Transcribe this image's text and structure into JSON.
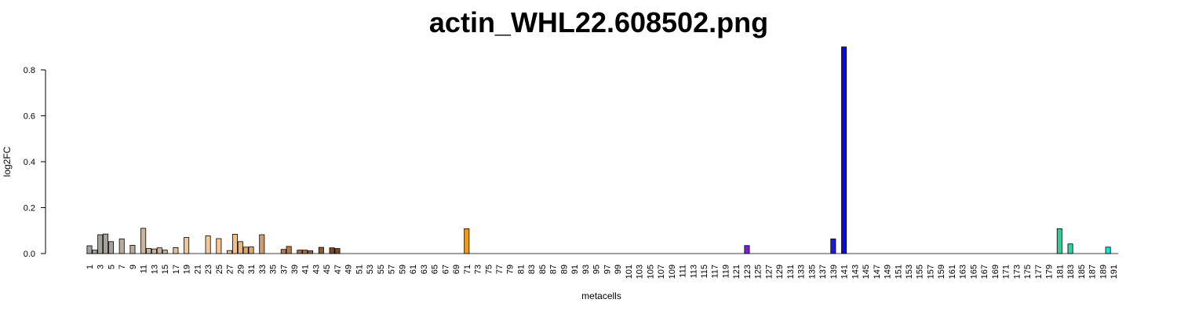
{
  "chart_data": {
    "type": "bar",
    "title": "actin_WHL22.608502.png",
    "xlabel": "metacells",
    "ylabel": "log2FC",
    "ylim": [
      0,
      0.8
    ],
    "yticks": [
      0.0,
      0.2,
      0.4,
      0.6,
      0.8
    ],
    "ytick_labels": [
      "0.0",
      "0.2",
      "0.4",
      "0.6",
      "0.8"
    ],
    "grid": false,
    "categories": [
      "1",
      "2",
      "3",
      "4",
      "5",
      "6",
      "7",
      "8",
      "9",
      "10",
      "11",
      "12",
      "13",
      "14",
      "15",
      "16",
      "17",
      "18",
      "19",
      "20",
      "21",
      "22",
      "23",
      "24",
      "25",
      "26",
      "27",
      "28",
      "29",
      "30",
      "31",
      "32",
      "33",
      "34",
      "35",
      "36",
      "37",
      "38",
      "39",
      "40",
      "41",
      "42",
      "43",
      "44",
      "45",
      "46",
      "47",
      "48",
      "49",
      "50",
      "51",
      "52",
      "53",
      "54",
      "55",
      "56",
      "57",
      "58",
      "59",
      "60",
      "61",
      "62",
      "63",
      "64",
      "65",
      "66",
      "67",
      "68",
      "69",
      "70",
      "71",
      "72",
      "73",
      "74",
      "75",
      "76",
      "77",
      "78",
      "79",
      "80",
      "81",
      "82",
      "83",
      "84",
      "85",
      "86",
      "87",
      "88",
      "89",
      "90",
      "91",
      "92",
      "93",
      "94",
      "95",
      "96",
      "97",
      "98",
      "99",
      "100",
      "101",
      "102",
      "103",
      "104",
      "105",
      "106",
      "107",
      "108",
      "109",
      "110",
      "111",
      "112",
      "113",
      "114",
      "115",
      "116",
      "117",
      "118",
      "119",
      "120",
      "121",
      "122",
      "123",
      "124",
      "125",
      "126",
      "127",
      "128",
      "129",
      "130",
      "131",
      "132",
      "133",
      "134",
      "135",
      "136",
      "137",
      "138",
      "139",
      "140",
      "141",
      "142",
      "143",
      "144",
      "145",
      "146",
      "147",
      "148",
      "149",
      "150",
      "151",
      "152",
      "153",
      "154",
      "155",
      "156",
      "157",
      "158",
      "159",
      "160",
      "161",
      "162",
      "163",
      "164",
      "165",
      "166",
      "167",
      "168",
      "169",
      "170",
      "171",
      "172",
      "173",
      "174",
      "175",
      "176",
      "177",
      "178",
      "179",
      "180",
      "181",
      "182",
      "183",
      "184",
      "185",
      "186",
      "187",
      "188",
      "189",
      "190",
      "191"
    ],
    "tick_labels_shown": [
      "1",
      "3",
      "5",
      "7",
      "9",
      "11",
      "13",
      "15",
      "17",
      "19",
      "21",
      "23",
      "25",
      "27",
      "29",
      "31",
      "33",
      "35",
      "37",
      "39",
      "41",
      "43",
      "45",
      "47",
      "49",
      "51",
      "53",
      "55",
      "57",
      "59",
      "61",
      "63",
      "65",
      "67",
      "69",
      "71",
      "73",
      "75",
      "77",
      "79",
      "81",
      "83",
      "85",
      "87",
      "89",
      "91",
      "93",
      "95",
      "97",
      "99",
      "101",
      "103",
      "105",
      "107",
      "109",
      "111",
      "113",
      "115",
      "117",
      "119",
      "121",
      "123",
      "125",
      "127",
      "129",
      "131",
      "133",
      "135",
      "137",
      "139",
      "141",
      "143",
      "145",
      "147",
      "149",
      "151",
      "153",
      "155",
      "157",
      "159",
      "161",
      "163",
      "165",
      "167",
      "169",
      "171",
      "173",
      "175",
      "177",
      "179",
      "181",
      "183",
      "185",
      "187",
      "189",
      "191"
    ],
    "values": [
      0.034,
      0.015,
      0.082,
      0.085,
      0.052,
      0,
      0.064,
      0,
      0.036,
      0,
      0.11,
      0.022,
      0.02,
      0.025,
      0.015,
      0,
      0.026,
      0,
      0.07,
      0,
      0,
      0,
      0.077,
      0,
      0.065,
      0,
      0.013,
      0.084,
      0.052,
      0.028,
      0.029,
      0,
      0.082,
      0,
      0,
      0,
      0.018,
      0.031,
      0,
      0.015,
      0.015,
      0.012,
      0,
      0.027,
      0,
      0.025,
      0.022,
      0,
      0,
      0,
      0,
      0,
      0,
      0,
      0,
      0,
      0,
      0,
      0,
      0,
      0,
      0,
      0,
      0,
      0,
      0,
      0,
      0,
      0,
      0,
      0.108,
      0,
      0,
      0,
      0,
      0,
      0,
      0,
      0,
      0,
      0,
      0,
      0,
      0,
      0,
      0,
      0,
      0,
      0,
      0,
      0,
      0,
      0,
      0,
      0,
      0,
      0,
      0,
      0,
      0,
      0,
      0,
      0,
      0,
      0,
      0,
      0,
      0,
      0,
      0,
      0,
      0,
      0,
      0,
      0,
      0,
      0,
      0,
      0,
      0,
      0,
      0,
      0.035,
      0,
      0,
      0,
      0,
      0,
      0,
      0,
      0,
      0,
      0,
      0,
      0,
      0,
      0,
      0,
      0.064,
      0,
      0.9,
      0,
      0,
      0,
      0,
      0,
      0,
      0,
      0,
      0,
      0,
      0,
      0,
      0,
      0,
      0,
      0,
      0,
      0,
      0,
      0,
      0,
      0,
      0,
      0,
      0,
      0,
      0,
      0,
      0,
      0,
      0,
      0,
      0,
      0,
      0,
      0,
      0,
      0,
      0,
      0.108,
      0,
      0.042,
      0,
      0,
      0,
      0,
      0,
      0,
      0.028,
      0
    ],
    "colors": {
      "1": "#a5a19c",
      "2": "#a5a19c",
      "3": "#a5a19c",
      "4": "#a5a19c",
      "5": "#a5a19c",
      "7": "#b5aba0",
      "9": "#b5aba0",
      "11": "#c8b59e",
      "12": "#c8b59e",
      "13": "#c8b59e",
      "14": "#c8b59e",
      "15": "#c8b59e",
      "17": "#e2bf98",
      "19": "#f0c796",
      "23": "#f4c795",
      "25": "#f4c795",
      "27": "#e8bd8c",
      "28": "#f0c08c",
      "29": "#e6b682",
      "30": "#d9a872",
      "31": "#d9a872",
      "33": "#d09e6a",
      "37": "#b97c4a",
      "38": "#b97c4a",
      "40": "#a8703e",
      "41": "#a8703e",
      "42": "#9e6938",
      "44": "#8f5a2e",
      "46": "#7a4a22",
      "47": "#7a4a22",
      "71": "#f29a12",
      "123": "#7b1be0",
      "139": "#1b1be0",
      "141": "#0a0ae0",
      "181": "#3cc794",
      "183": "#33d0a8",
      "190": "#1ee0d0",
      "default": "#a5a19c"
    }
  }
}
